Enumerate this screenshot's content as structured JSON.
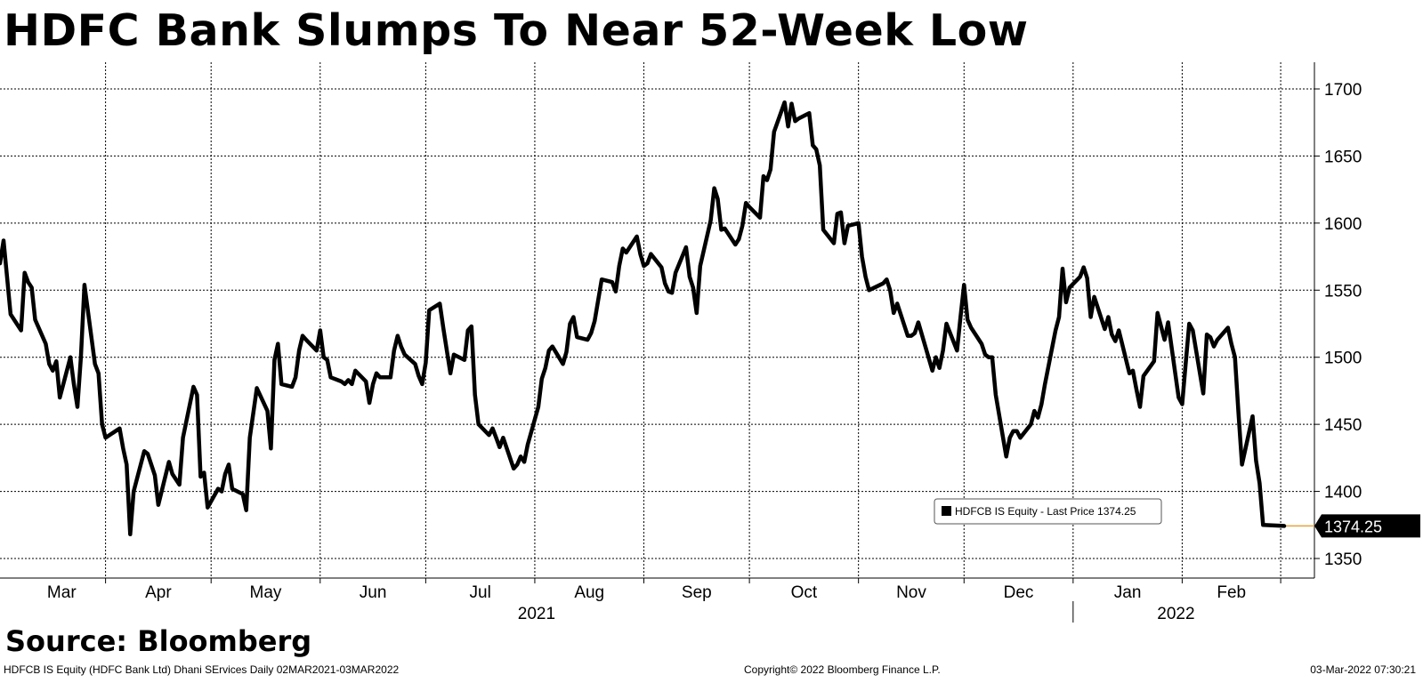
{
  "title": "HDFC Bank Slumps To Near 52-Week Low",
  "source": "Source: Bloomberg",
  "footer": {
    "left": "HDFCB IS Equity (HDFC Bank Ltd) Dhani SErvices  Daily 02MAR2021-03MAR2022",
    "center": "Copyright© 2022 Bloomberg Finance L.P.",
    "right": "03-Mar-2022 07:30:21"
  },
  "chart_data": {
    "type": "line",
    "title": "HDFC Bank Slumps To Near 52-Week Low",
    "xlabel": "",
    "ylabel": "",
    "x_range": [
      "2021-03-02",
      "2022-03-03"
    ],
    "ylim": [
      1335,
      1715
    ],
    "y_ticks": [
      1350,
      1400,
      1450,
      1500,
      1550,
      1600,
      1650,
      1700
    ],
    "month_ticks": [
      "Mar",
      "Apr",
      "May",
      "Jun",
      "Jul",
      "Aug",
      "Sep",
      "Oct",
      "Nov",
      "Dec",
      "Jan",
      "Feb"
    ],
    "year_labels": [
      "2021",
      "2022"
    ],
    "grid": true,
    "y_axis_position": "right",
    "legend": {
      "label": "HDFCB IS Equity - Last Price 1374.25",
      "placement": "bottom-right"
    },
    "last_price": 1374.25,
    "last_price_label": "1374.25",
    "colors": {
      "line": "#000000",
      "last_marker": "#e8a33a",
      "grid": "#000000"
    },
    "series": [
      {
        "values": [
          [
            "2021-03-02",
            1570
          ],
          [
            "2021-03-03",
            1587
          ],
          [
            "2021-03-04",
            1560
          ],
          [
            "2021-03-05",
            1532
          ],
          [
            "2021-03-08",
            1520
          ],
          [
            "2021-03-09",
            1563
          ],
          [
            "2021-03-10",
            1556
          ],
          [
            "2021-03-11",
            1552
          ],
          [
            "2021-03-12",
            1528
          ],
          [
            "2021-03-15",
            1510
          ],
          [
            "2021-03-16",
            1495
          ],
          [
            "2021-03-17",
            1490
          ],
          [
            "2021-03-18",
            1497
          ],
          [
            "2021-03-19",
            1470
          ],
          [
            "2021-03-22",
            1500
          ],
          [
            "2021-03-23",
            1480
          ],
          [
            "2021-03-24",
            1463
          ],
          [
            "2021-03-25",
            1500
          ],
          [
            "2021-03-26",
            1554
          ],
          [
            "2021-03-29",
            1495
          ],
          [
            "2021-03-30",
            1488
          ],
          [
            "2021-03-31",
            1450
          ],
          [
            "2021-04-01",
            1440
          ],
          [
            "2021-04-05",
            1447
          ],
          [
            "2021-04-06",
            1432
          ],
          [
            "2021-04-07",
            1420
          ],
          [
            "2021-04-08",
            1368
          ],
          [
            "2021-04-09",
            1400
          ],
          [
            "2021-04-12",
            1430
          ],
          [
            "2021-04-13",
            1428
          ],
          [
            "2021-04-15",
            1412
          ],
          [
            "2021-04-16",
            1390
          ],
          [
            "2021-04-19",
            1422
          ],
          [
            "2021-04-20",
            1413
          ],
          [
            "2021-04-22",
            1405
          ],
          [
            "2021-04-23",
            1440
          ],
          [
            "2021-04-26",
            1478
          ],
          [
            "2021-04-27",
            1472
          ],
          [
            "2021-04-28",
            1411
          ],
          [
            "2021-04-29",
            1414
          ],
          [
            "2021-04-30",
            1388
          ],
          [
            "2021-05-03",
            1402
          ],
          [
            "2021-05-04",
            1400
          ],
          [
            "2021-05-05",
            1413
          ],
          [
            "2021-05-06",
            1420
          ],
          [
            "2021-05-07",
            1402
          ],
          [
            "2021-05-10",
            1398
          ],
          [
            "2021-05-11",
            1386
          ],
          [
            "2021-05-12",
            1440
          ],
          [
            "2021-05-14",
            1477
          ],
          [
            "2021-05-17",
            1460
          ],
          [
            "2021-05-18",
            1432
          ],
          [
            "2021-05-19",
            1498
          ],
          [
            "2021-05-20",
            1510
          ],
          [
            "2021-05-21",
            1480
          ],
          [
            "2021-05-24",
            1478
          ],
          [
            "2021-05-25",
            1485
          ],
          [
            "2021-05-26",
            1505
          ],
          [
            "2021-05-27",
            1516
          ],
          [
            "2021-05-28",
            1513
          ],
          [
            "2021-05-31",
            1505
          ],
          [
            "2021-06-01",
            1520
          ],
          [
            "2021-06-02",
            1500
          ],
          [
            "2021-06-03",
            1498
          ],
          [
            "2021-06-04",
            1485
          ],
          [
            "2021-06-07",
            1482
          ],
          [
            "2021-06-08",
            1480
          ],
          [
            "2021-06-09",
            1483
          ],
          [
            "2021-06-10",
            1480
          ],
          [
            "2021-06-11",
            1490
          ],
          [
            "2021-06-14",
            1482
          ],
          [
            "2021-06-15",
            1466
          ],
          [
            "2021-06-16",
            1480
          ],
          [
            "2021-06-17",
            1488
          ],
          [
            "2021-06-18",
            1485
          ],
          [
            "2021-06-21",
            1485
          ],
          [
            "2021-06-22",
            1505
          ],
          [
            "2021-06-23",
            1516
          ],
          [
            "2021-06-24",
            1508
          ],
          [
            "2021-06-25",
            1502
          ],
          [
            "2021-06-28",
            1495
          ],
          [
            "2021-06-29",
            1486
          ],
          [
            "2021-06-30",
            1480
          ],
          [
            "2021-07-01",
            1496
          ],
          [
            "2021-07-02",
            1535
          ],
          [
            "2021-07-05",
            1540
          ],
          [
            "2021-07-06",
            1522
          ],
          [
            "2021-07-07",
            1505
          ],
          [
            "2021-07-08",
            1488
          ],
          [
            "2021-07-09",
            1502
          ],
          [
            "2021-07-12",
            1498
          ],
          [
            "2021-07-13",
            1520
          ],
          [
            "2021-07-14",
            1523
          ],
          [
            "2021-07-15",
            1472
          ],
          [
            "2021-07-16",
            1450
          ],
          [
            "2021-07-19",
            1442
          ],
          [
            "2021-07-20",
            1447
          ],
          [
            "2021-07-21",
            1440
          ],
          [
            "2021-07-22",
            1433
          ],
          [
            "2021-07-23",
            1440
          ],
          [
            "2021-07-26",
            1417
          ],
          [
            "2021-07-27",
            1420
          ],
          [
            "2021-07-28",
            1426
          ],
          [
            "2021-07-29",
            1422
          ],
          [
            "2021-07-30",
            1435
          ],
          [
            "2021-08-02",
            1463
          ],
          [
            "2021-08-03",
            1484
          ],
          [
            "2021-08-04",
            1492
          ],
          [
            "2021-08-05",
            1505
          ],
          [
            "2021-08-06",
            1508
          ],
          [
            "2021-08-09",
            1495
          ],
          [
            "2021-08-10",
            1504
          ],
          [
            "2021-08-11",
            1525
          ],
          [
            "2021-08-12",
            1530
          ],
          [
            "2021-08-13",
            1515
          ],
          [
            "2021-08-16",
            1513
          ],
          [
            "2021-08-17",
            1518
          ],
          [
            "2021-08-18",
            1527
          ],
          [
            "2021-08-20",
            1558
          ],
          [
            "2021-08-23",
            1556
          ],
          [
            "2021-08-24",
            1549
          ],
          [
            "2021-08-25",
            1568
          ],
          [
            "2021-08-26",
            1581
          ],
          [
            "2021-08-27",
            1578
          ],
          [
            "2021-08-30",
            1590
          ],
          [
            "2021-08-31",
            1577
          ],
          [
            "2021-09-01",
            1568
          ],
          [
            "2021-09-02",
            1570
          ],
          [
            "2021-09-03",
            1577
          ],
          [
            "2021-09-06",
            1567
          ],
          [
            "2021-09-07",
            1555
          ],
          [
            "2021-09-08",
            1549
          ],
          [
            "2021-09-09",
            1548
          ],
          [
            "2021-09-10",
            1563
          ],
          [
            "2021-09-13",
            1582
          ],
          [
            "2021-09-14",
            1560
          ],
          [
            "2021-09-15",
            1552
          ],
          [
            "2021-09-16",
            1533
          ],
          [
            "2021-09-17",
            1568
          ],
          [
            "2021-09-20",
            1602
          ],
          [
            "2021-09-21",
            1626
          ],
          [
            "2021-09-22",
            1618
          ],
          [
            "2021-09-23",
            1595
          ],
          [
            "2021-09-24",
            1596
          ],
          [
            "2021-09-27",
            1584
          ],
          [
            "2021-09-28",
            1588
          ],
          [
            "2021-09-29",
            1598
          ],
          [
            "2021-09-30",
            1615
          ],
          [
            "2021-10-01",
            1612
          ],
          [
            "2021-10-04",
            1604
          ],
          [
            "2021-10-05",
            1635
          ],
          [
            "2021-10-06",
            1632
          ],
          [
            "2021-10-07",
            1640
          ],
          [
            "2021-10-08",
            1668
          ],
          [
            "2021-10-11",
            1690
          ],
          [
            "2021-10-12",
            1672
          ],
          [
            "2021-10-13",
            1689
          ],
          [
            "2021-10-14",
            1676
          ],
          [
            "2021-10-15",
            1678
          ],
          [
            "2021-10-18",
            1682
          ],
          [
            "2021-10-19",
            1658
          ],
          [
            "2021-10-20",
            1655
          ],
          [
            "2021-10-21",
            1643
          ],
          [
            "2021-10-22",
            1595
          ],
          [
            "2021-10-25",
            1585
          ],
          [
            "2021-10-26",
            1607
          ],
          [
            "2021-10-27",
            1608
          ],
          [
            "2021-10-28",
            1585
          ],
          [
            "2021-10-29",
            1598
          ],
          [
            "2021-11-01",
            1600
          ],
          [
            "2021-11-02",
            1575
          ],
          [
            "2021-11-03",
            1560
          ],
          [
            "2021-11-04",
            1550
          ],
          [
            "2021-11-08",
            1555
          ],
          [
            "2021-11-09",
            1558
          ],
          [
            "2021-11-10",
            1550
          ],
          [
            "2021-11-11",
            1533
          ],
          [
            "2021-11-12",
            1540
          ],
          [
            "2021-11-15",
            1516
          ],
          [
            "2021-11-16",
            1516
          ],
          [
            "2021-11-17",
            1518
          ],
          [
            "2021-11-18",
            1526
          ],
          [
            "2021-11-22",
            1490
          ],
          [
            "2021-11-23",
            1500
          ],
          [
            "2021-11-24",
            1492
          ],
          [
            "2021-11-25",
            1505
          ],
          [
            "2021-11-26",
            1525
          ],
          [
            "2021-11-29",
            1505
          ],
          [
            "2021-11-30",
            1530
          ],
          [
            "2021-12-01",
            1554
          ],
          [
            "2021-12-02",
            1528
          ],
          [
            "2021-12-03",
            1522
          ],
          [
            "2021-12-06",
            1510
          ],
          [
            "2021-12-07",
            1502
          ],
          [
            "2021-12-08",
            1500
          ],
          [
            "2021-12-09",
            1500
          ],
          [
            "2021-12-10",
            1472
          ],
          [
            "2021-12-13",
            1426
          ],
          [
            "2021-12-14",
            1440
          ],
          [
            "2021-12-15",
            1445
          ],
          [
            "2021-12-16",
            1445
          ],
          [
            "2021-12-17",
            1440
          ],
          [
            "2021-12-20",
            1450
          ],
          [
            "2021-12-21",
            1460
          ],
          [
            "2021-12-22",
            1455
          ],
          [
            "2021-12-23",
            1465
          ],
          [
            "2021-12-24",
            1480
          ],
          [
            "2021-12-27",
            1520
          ],
          [
            "2021-12-28",
            1530
          ],
          [
            "2021-12-29",
            1566
          ],
          [
            "2021-12-30",
            1541
          ],
          [
            "2021-12-31",
            1552
          ],
          [
            "2022-01-03",
            1560
          ],
          [
            "2022-01-04",
            1567
          ],
          [
            "2022-01-05",
            1559
          ],
          [
            "2022-01-06",
            1530
          ],
          [
            "2022-01-07",
            1545
          ],
          [
            "2022-01-10",
            1521
          ],
          [
            "2022-01-11",
            1530
          ],
          [
            "2022-01-12",
            1517
          ],
          [
            "2022-01-13",
            1512
          ],
          [
            "2022-01-14",
            1520
          ],
          [
            "2022-01-17",
            1488
          ],
          [
            "2022-01-18",
            1490
          ],
          [
            "2022-01-19",
            1476
          ],
          [
            "2022-01-20",
            1463
          ],
          [
            "2022-01-21",
            1486
          ],
          [
            "2022-01-24",
            1497
          ],
          [
            "2022-01-25",
            1533
          ],
          [
            "2022-01-27",
            1513
          ],
          [
            "2022-01-28",
            1526
          ],
          [
            "2022-01-31",
            1470
          ],
          [
            "2022-02-01",
            1465
          ],
          [
            "2022-02-02",
            1495
          ],
          [
            "2022-02-03",
            1525
          ],
          [
            "2022-02-04",
            1520
          ],
          [
            "2022-02-07",
            1473
          ],
          [
            "2022-02-08",
            1517
          ],
          [
            "2022-02-09",
            1515
          ],
          [
            "2022-02-10",
            1508
          ],
          [
            "2022-02-11",
            1513
          ],
          [
            "2022-02-14",
            1522
          ],
          [
            "2022-02-15",
            1510
          ],
          [
            "2022-02-16",
            1500
          ],
          [
            "2022-02-17",
            1458
          ],
          [
            "2022-02-18",
            1420
          ],
          [
            "2022-02-21",
            1456
          ],
          [
            "2022-02-22",
            1423
          ],
          [
            "2022-02-23",
            1406
          ],
          [
            "2022-02-24",
            1375
          ],
          [
            "2022-03-02",
            1374.25
          ]
        ]
      }
    ]
  }
}
